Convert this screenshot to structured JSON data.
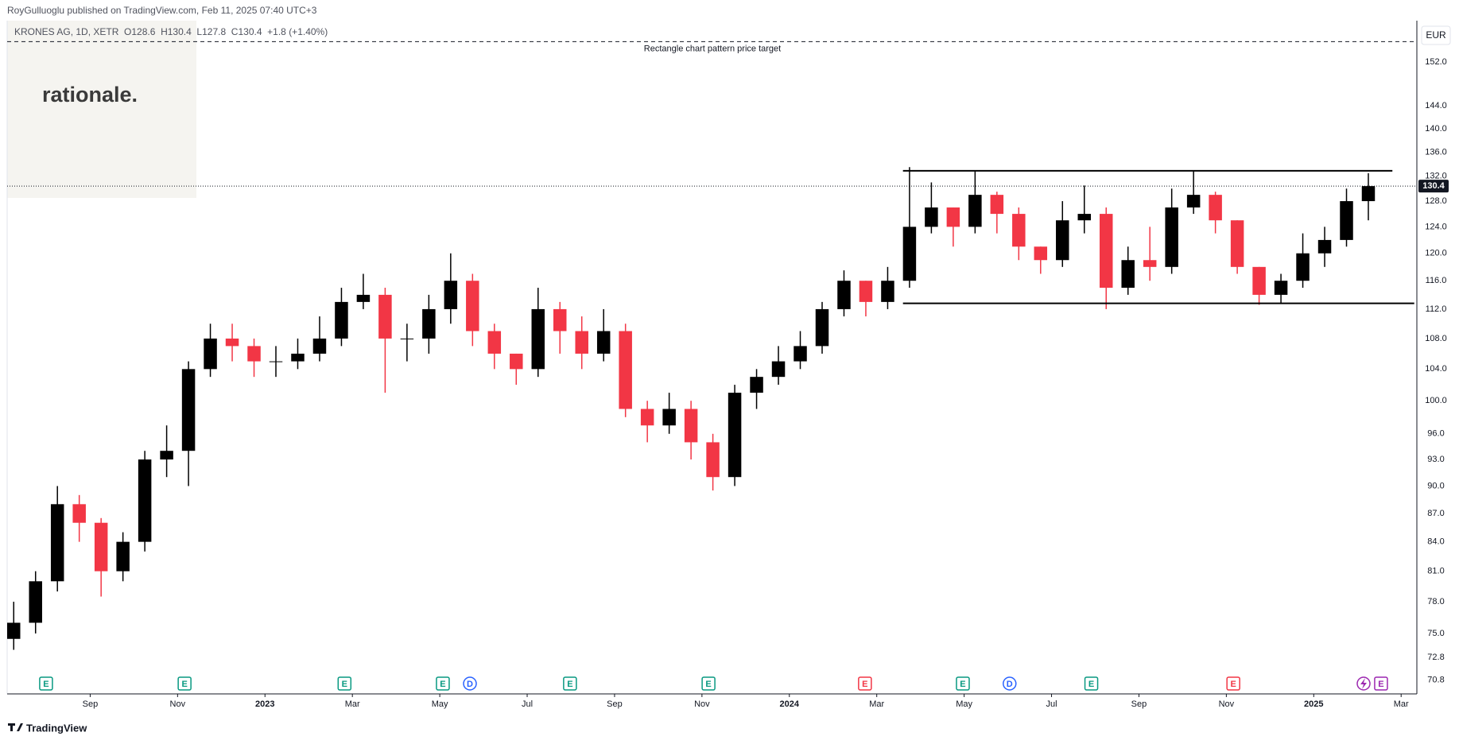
{
  "header": {
    "publisher": "RoyGulluoglu published on TradingView.com, Feb 11, 2025 07:40 UTC+3",
    "legend": "KRONES AG, 1D, XETR  O128.6  H130.4  L127.8  C130.4  +1.8 (+1.40%)"
  },
  "brand": "rationale.",
  "footer": "TradingView",
  "chart_data": {
    "type": "candlestick",
    "currency": "EUR",
    "log_scale": true,
    "grid": false,
    "up_color": "#000000",
    "down_color": "#f23645",
    "x": [
      -1.75,
      -1.25,
      -0.75,
      -0.25,
      0.25,
      0.75,
      1.25,
      1.75,
      2.25,
      2.75,
      3.25,
      3.75,
      4.25,
      4.75,
      5.25,
      5.75,
      6.25,
      6.75,
      7.25,
      7.75,
      8.25,
      8.75,
      9.25,
      9.75,
      10.25,
      10.75,
      11.25,
      11.75,
      12.25,
      12.75,
      13.25,
      13.75,
      14.25,
      14.75,
      15.25,
      15.75,
      16.25,
      16.75,
      17.25,
      17.75,
      18.25,
      18.75,
      19.25,
      19.75,
      20.25,
      20.75,
      21.25,
      21.75,
      22.25,
      22.75,
      23.25,
      23.75,
      24.25,
      24.75,
      25.25,
      25.75,
      26.25,
      26.75,
      27.25,
      27.75,
      28.25,
      28.75,
      29.25
    ],
    "open": [
      74.5,
      76,
      80,
      88,
      86,
      81,
      84,
      93,
      94,
      104,
      108,
      107,
      105,
      105,
      106,
      108,
      113,
      114,
      108,
      108,
      112,
      116,
      109,
      106,
      104,
      112,
      109,
      106,
      109,
      99,
      97,
      99,
      95,
      91,
      101,
      103,
      105,
      107,
      112,
      116,
      113,
      116,
      124,
      127,
      124,
      129,
      126,
      121,
      119,
      125,
      126,
      115,
      119,
      118,
      127,
      129,
      125,
      118,
      114,
      116,
      120,
      122,
      128
    ],
    "high": [
      78,
      81,
      90,
      89,
      86.5,
      85,
      94,
      97,
      105,
      110,
      110,
      108,
      107,
      108,
      111,
      115,
      117,
      115,
      110,
      114,
      120,
      117,
      110,
      106,
      115,
      113,
      111,
      112,
      110,
      100,
      101,
      100,
      96,
      102,
      104,
      107,
      109,
      113,
      117.5,
      116,
      118,
      133.5,
      131,
      127,
      132.8,
      129.5,
      127,
      121,
      128,
      130.5,
      127,
      121,
      124,
      130,
      132.8,
      129.5,
      125,
      118,
      117,
      123,
      124,
      130,
      132.5
    ],
    "low": [
      73.5,
      75,
      79,
      84,
      78.5,
      80,
      83,
      91,
      90,
      103,
      105,
      103,
      103,
      104,
      105,
      107,
      112,
      101,
      105,
      106,
      110,
      107,
      104,
      102,
      103,
      106,
      104,
      105,
      98,
      95,
      96,
      93,
      89.5,
      90,
      99,
      102,
      104,
      106,
      111,
      111,
      112,
      115,
      123,
      121,
      123,
      123,
      119,
      117,
      118,
      123,
      112,
      114,
      116,
      117,
      126,
      123,
      117,
      112.6,
      112.8,
      115,
      118,
      121,
      125
    ],
    "close": [
      76,
      80,
      88,
      86,
      81,
      84,
      93,
      94,
      104,
      108,
      107,
      105,
      105,
      106,
      108,
      113,
      114,
      108,
      108,
      112,
      116,
      109,
      106,
      104,
      112,
      109,
      106,
      109,
      99,
      97,
      99,
      95,
      91,
      101,
      103,
      105,
      107,
      112,
      116,
      113,
      116,
      124,
      127,
      124,
      129,
      126,
      121,
      119,
      125,
      126,
      115,
      119,
      118,
      127,
      129,
      125,
      118,
      114,
      116,
      120,
      122,
      128,
      130.4
    ],
    "xlim": [
      -1.9,
      30.36
    ],
    "xticks": [
      {
        "value": 0,
        "label": "Sep"
      },
      {
        "value": 2,
        "label": "Nov"
      },
      {
        "value": 4,
        "label": "2023"
      },
      {
        "value": 6,
        "label": "Mar"
      },
      {
        "value": 8,
        "label": "May"
      },
      {
        "value": 10,
        "label": "Jul"
      },
      {
        "value": 12,
        "label": "Sep"
      },
      {
        "value": 14,
        "label": "Nov"
      },
      {
        "value": 16,
        "label": "2024"
      },
      {
        "value": 18,
        "label": "Mar"
      },
      {
        "value": 20,
        "label": "May"
      },
      {
        "value": 22,
        "label": "Jul"
      },
      {
        "value": 24,
        "label": "Sep"
      },
      {
        "value": 26,
        "label": "Nov"
      },
      {
        "value": 28,
        "label": "2025"
      },
      {
        "value": 30,
        "label": "Mar"
      }
    ],
    "ylim": [
      69.6,
      160
    ],
    "yticks": [
      70.8,
      72.8,
      {
        "value": 75,
        "label": "75.0"
      },
      {
        "value": 78,
        "label": "78.0"
      },
      {
        "value": 81,
        "label": "81.0"
      },
      {
        "value": 84,
        "label": "84.0"
      },
      {
        "value": 87,
        "label": "87.0"
      },
      {
        "value": 90,
        "label": "90.0"
      },
      {
        "value": 93,
        "label": "93.0"
      },
      {
        "value": 96,
        "label": "96.0"
      },
      {
        "value": 100,
        "label": "100.0"
      },
      {
        "value": 104,
        "label": "104.0"
      },
      {
        "value": 108,
        "label": "108.0"
      },
      {
        "value": 112,
        "label": "112.0"
      },
      {
        "value": 116,
        "label": "116.0"
      },
      {
        "value": 120,
        "label": "120.0"
      },
      {
        "value": 124,
        "label": "124.0"
      },
      {
        "value": 128,
        "label": "128.0"
      },
      {
        "value": 132,
        "label": "132.0"
      },
      {
        "value": 136,
        "label": "136.0"
      },
      {
        "value": 140,
        "label": "140.0"
      },
      {
        "value": 144,
        "label": "144.0"
      },
      {
        "value": 152,
        "label": "152.0"
      }
    ],
    "last_price": 130.4,
    "target": {
      "label": "Rectangle chart pattern price target",
      "value": 155.9
    },
    "pattern_lines": [
      {
        "x": [
          18.6,
          29.8
        ],
        "y": [
          132.9,
          132.9
        ]
      },
      {
        "x": [
          18.6,
          30.3
        ],
        "y": [
          112.8,
          112.8
        ]
      }
    ],
    "events": [
      {
        "x": -1.01,
        "label": "E",
        "color": "#089981"
      },
      {
        "x": 2.16,
        "label": "E",
        "color": "#089981"
      },
      {
        "x": 5.82,
        "label": "E",
        "color": "#089981"
      },
      {
        "x": 8.07,
        "label": "E",
        "color": "#089981"
      },
      {
        "x": 8.69,
        "label": "D",
        "color": "#2962ff"
      },
      {
        "x": 10.98,
        "label": "E",
        "color": "#089981"
      },
      {
        "x": 14.15,
        "label": "E",
        "color": "#089981"
      },
      {
        "x": 17.73,
        "label": "E",
        "color": "#f23645"
      },
      {
        "x": 19.97,
        "label": "E",
        "color": "#089981"
      },
      {
        "x": 21.04,
        "label": "D",
        "color": "#2962ff"
      },
      {
        "x": 22.91,
        "label": "E",
        "color": "#089981"
      },
      {
        "x": 26.16,
        "label": "E",
        "color": "#f23645"
      },
      {
        "x": 29.54,
        "label": "E",
        "color": "#9c27b0"
      }
    ]
  }
}
